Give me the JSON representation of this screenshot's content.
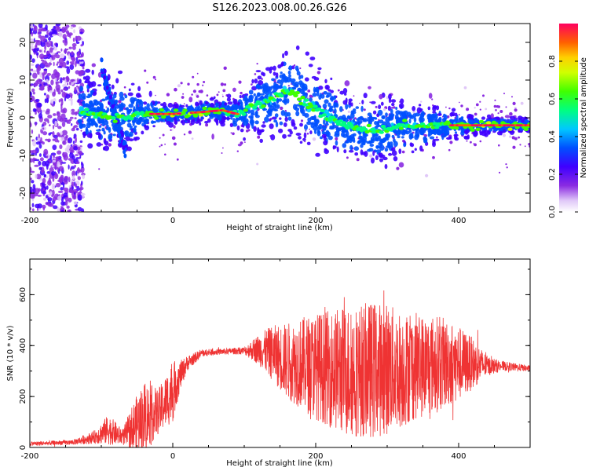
{
  "page_title": "S126.2023.008.00.26.G26",
  "chart_data": [
    {
      "type": "heatmap",
      "xlabel": "Height of straight line (km)",
      "ylabel": "Frequency (Hz)",
      "xlim": [
        -200,
        500
      ],
      "ylim": [
        -25,
        25
      ],
      "xticks": [
        -200,
        0,
        200,
        400
      ],
      "yticks": [
        -20,
        -10,
        0,
        10,
        20
      ],
      "colorbar": {
        "label": "Normalized spectral amplitude",
        "range": [
          0,
          1
        ],
        "ticks": [
          "0.0",
          "0.2",
          "0.4",
          "0.6",
          "0.8"
        ]
      },
      "ridge": {
        "x": [
          -130,
          -110,
          -95,
          -80,
          -65,
          -50,
          -30,
          0,
          40,
          70,
          90,
          110,
          130,
          150,
          165,
          180,
          200,
          230,
          260,
          290,
          320,
          350,
          380,
          410,
          440,
          470,
          500
        ],
        "frequency": [
          2,
          1,
          0,
          0,
          0,
          1,
          1,
          1,
          1.5,
          2,
          1,
          3,
          4,
          6,
          7,
          5,
          2,
          -1,
          -3,
          -4,
          -2,
          -2,
          -2,
          -2,
          -2,
          -2,
          -2
        ]
      }
    },
    {
      "type": "line",
      "xlabel": "Height of straight line (km)",
      "ylabel": "SNR (10 * v/v)",
      "xlim": [
        -200,
        500
      ],
      "ylim": [
        0,
        740
      ],
      "xticks": [
        -200,
        0,
        200,
        400
      ],
      "yticks": [
        0,
        200,
        400,
        600
      ],
      "color": "#ef3333",
      "envelope": {
        "x": [
          -200,
          -140,
          -110,
          -90,
          -70,
          -55,
          -40,
          -20,
          0,
          10,
          20,
          40,
          60,
          80,
          100,
          120,
          140,
          160,
          180,
          200,
          220,
          240,
          260,
          280,
          300,
          320,
          340,
          360,
          380,
          400,
          420,
          440,
          460,
          480,
          500
        ],
        "center": [
          15,
          20,
          40,
          70,
          40,
          80,
          120,
          140,
          220,
          280,
          330,
          370,
          375,
          378,
          380,
          385,
          370,
          340,
          330,
          320,
          310,
          300,
          300,
          305,
          310,
          305,
          320,
          325,
          330,
          330,
          330,
          320,
          320,
          315,
          310
        ],
        "amplitude": [
          8,
          10,
          25,
          60,
          30,
          100,
          140,
          90,
          120,
          60,
          30,
          15,
          12,
          12,
          15,
          60,
          110,
          150,
          180,
          210,
          230,
          260,
          260,
          270,
          260,
          230,
          210,
          200,
          180,
          150,
          100,
          40,
          20,
          15,
          12
        ]
      }
    }
  ]
}
